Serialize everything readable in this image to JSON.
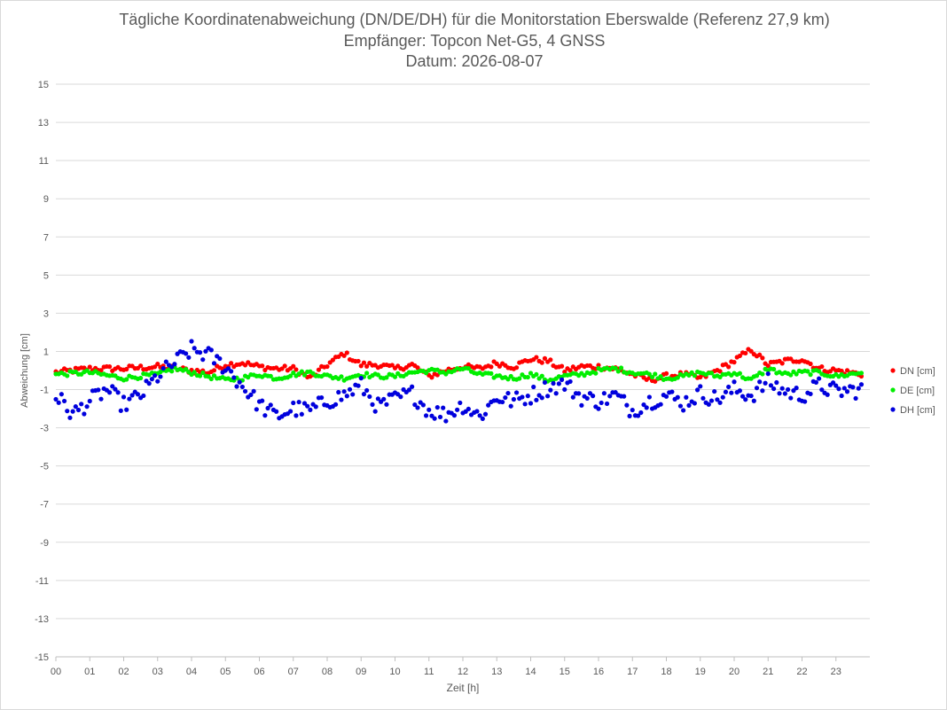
{
  "chart_data": {
    "type": "scatter",
    "title": [
      "Tägliche Koordinatenabweichung (DN/DE/DH) für die Monitorstation Eberswalde (Referenz 27,9 km)",
      "Empfänger: Topcon Net-G5, 4 GNSS",
      "Datum: 2026-08-07"
    ],
    "xlabel": "Zeit [h]",
    "ylabel": "Abweichung [cm]",
    "xlim": [
      0,
      24
    ],
    "ylim": [
      -15,
      15
    ],
    "x_ticks": [
      "00",
      "01",
      "02",
      "03",
      "04",
      "05",
      "06",
      "07",
      "08",
      "09",
      "10",
      "11",
      "12",
      "13",
      "14",
      "15",
      "16",
      "17",
      "18",
      "19",
      "20",
      "21",
      "22",
      "23"
    ],
    "y_ticks": [
      15,
      13,
      11,
      9,
      7,
      5,
      3,
      1,
      -1,
      -3,
      -5,
      -7,
      -9,
      -11,
      -13,
      -15
    ],
    "grid": "horizontal",
    "legend_position": "right",
    "series": [
      {
        "name": "DN [cm]",
        "color": "#ff0000",
        "points": [
          [
            0,
            -0.1
          ],
          [
            1,
            0.1
          ],
          [
            2,
            0.1
          ],
          [
            3,
            0.2
          ],
          [
            3.5,
            0.1
          ],
          [
            4,
            0
          ],
          [
            4.5,
            -0.1
          ],
          [
            5,
            0.3
          ],
          [
            5.5,
            0.4
          ],
          [
            6,
            0.2
          ],
          [
            6.5,
            0.1
          ],
          [
            7,
            0.1
          ],
          [
            7.5,
            -0.4
          ],
          [
            8,
            0.3
          ],
          [
            8.5,
            0.9
          ],
          [
            9,
            0.3
          ],
          [
            9.5,
            0.3
          ],
          [
            10,
            0.1
          ],
          [
            10.5,
            0.3
          ],
          [
            11,
            -0.3
          ],
          [
            11.5,
            0
          ],
          [
            12,
            0.2
          ],
          [
            12.5,
            0.1
          ],
          [
            13,
            0.4
          ],
          [
            13.5,
            0.2
          ],
          [
            14,
            0.6
          ],
          [
            14.5,
            0.5
          ],
          [
            15,
            0
          ],
          [
            15.5,
            0.2
          ],
          [
            16,
            0.2
          ],
          [
            16.5,
            0.1
          ],
          [
            17,
            -0.2
          ],
          [
            17.5,
            -0.5
          ],
          [
            18,
            -0.3
          ],
          [
            18.5,
            -0.2
          ],
          [
            19,
            -0.4
          ],
          [
            19.5,
            0
          ],
          [
            20,
            0.5
          ],
          [
            20.5,
            1.1
          ],
          [
            21,
            0.3
          ],
          [
            21.5,
            0.5
          ],
          [
            22,
            0.6
          ],
          [
            22.5,
            0.1
          ],
          [
            23,
            0
          ],
          [
            23.8,
            -0.2
          ]
        ]
      },
      {
        "name": "DE [cm]",
        "color": "#00ee00",
        "points": [
          [
            0,
            -0.2
          ],
          [
            1,
            -0.1
          ],
          [
            2,
            -0.4
          ],
          [
            3,
            -0.2
          ],
          [
            3.5,
            0.1
          ],
          [
            4,
            -0.1
          ],
          [
            4.5,
            -0.3
          ],
          [
            5,
            -0.5
          ],
          [
            5.5,
            -0.4
          ],
          [
            6,
            -0.2
          ],
          [
            6.5,
            -0.4
          ],
          [
            7,
            -0.2
          ],
          [
            7.5,
            -0.1
          ],
          [
            8,
            -0.3
          ],
          [
            8.5,
            -0.4
          ],
          [
            9,
            -0.2
          ],
          [
            9.5,
            -0.3
          ],
          [
            10,
            -0.3
          ],
          [
            10.5,
            -0.1
          ],
          [
            11,
            0
          ],
          [
            11.5,
            -0.1
          ],
          [
            12,
            0.1
          ],
          [
            12.5,
            -0.2
          ],
          [
            13,
            -0.3
          ],
          [
            13.5,
            -0.4
          ],
          [
            14,
            -0.2
          ],
          [
            14.5,
            -0.5
          ],
          [
            15,
            -0.3
          ],
          [
            15.5,
            -0.2
          ],
          [
            16,
            0
          ],
          [
            16.5,
            0.1
          ],
          [
            17,
            -0.1
          ],
          [
            17.5,
            -0.2
          ],
          [
            18,
            -0.4
          ],
          [
            18.5,
            -0.3
          ],
          [
            19,
            -0.1
          ],
          [
            19.5,
            -0.3
          ],
          [
            20,
            -0.1
          ],
          [
            20.5,
            -0.5
          ],
          [
            21,
            0.1
          ],
          [
            21.5,
            -0.2
          ],
          [
            22,
            -0.1
          ],
          [
            22.5,
            -0.1
          ],
          [
            23,
            -0.3
          ],
          [
            23.8,
            -0.1
          ]
        ]
      },
      {
        "name": "DH [cm]",
        "color": "#0000dd",
        "points": [
          [
            0,
            -1.3
          ],
          [
            0.5,
            -2.3
          ],
          [
            1,
            -1.6
          ],
          [
            1.5,
            -1
          ],
          [
            2,
            -1.8
          ],
          [
            2.5,
            -1.3
          ],
          [
            3,
            -0.3
          ],
          [
            3.5,
            0.4
          ],
          [
            4,
            1.1
          ],
          [
            4.5,
            0.8
          ],
          [
            5,
            0.2
          ],
          [
            5.5,
            -0.8
          ],
          [
            6,
            -1.8
          ],
          [
            6.5,
            -2.4
          ],
          [
            7,
            -2
          ],
          [
            7.5,
            -2.1
          ],
          [
            8,
            -1.6
          ],
          [
            8.5,
            -1.3
          ],
          [
            9,
            -0.8
          ],
          [
            9.5,
            -1.9
          ],
          [
            10,
            -1.5
          ],
          [
            10.5,
            -1.2
          ],
          [
            11,
            -2.1
          ],
          [
            11.5,
            -2.3
          ],
          [
            12,
            -1.8
          ],
          [
            12.5,
            -2.4
          ],
          [
            13,
            -1.4
          ],
          [
            13.5,
            -1.6
          ],
          [
            14,
            -1.3
          ],
          [
            14.5,
            -0.9
          ],
          [
            15,
            -0.7
          ],
          [
            15.5,
            -1.4
          ],
          [
            16,
            -1.6
          ],
          [
            16.5,
            -1.3
          ],
          [
            17,
            -2.1
          ],
          [
            17.5,
            -1.6
          ],
          [
            18,
            -1.3
          ],
          [
            18.5,
            -1.7
          ],
          [
            19,
            -1.2
          ],
          [
            19.5,
            -1.5
          ],
          [
            20,
            -1
          ],
          [
            20.5,
            -1.3
          ],
          [
            21,
            -0.6
          ],
          [
            21.5,
            -1.1
          ],
          [
            22,
            -1.3
          ],
          [
            22.5,
            -0.8
          ],
          [
            23,
            -1.1
          ],
          [
            23.8,
            -1
          ]
        ]
      }
    ]
  }
}
